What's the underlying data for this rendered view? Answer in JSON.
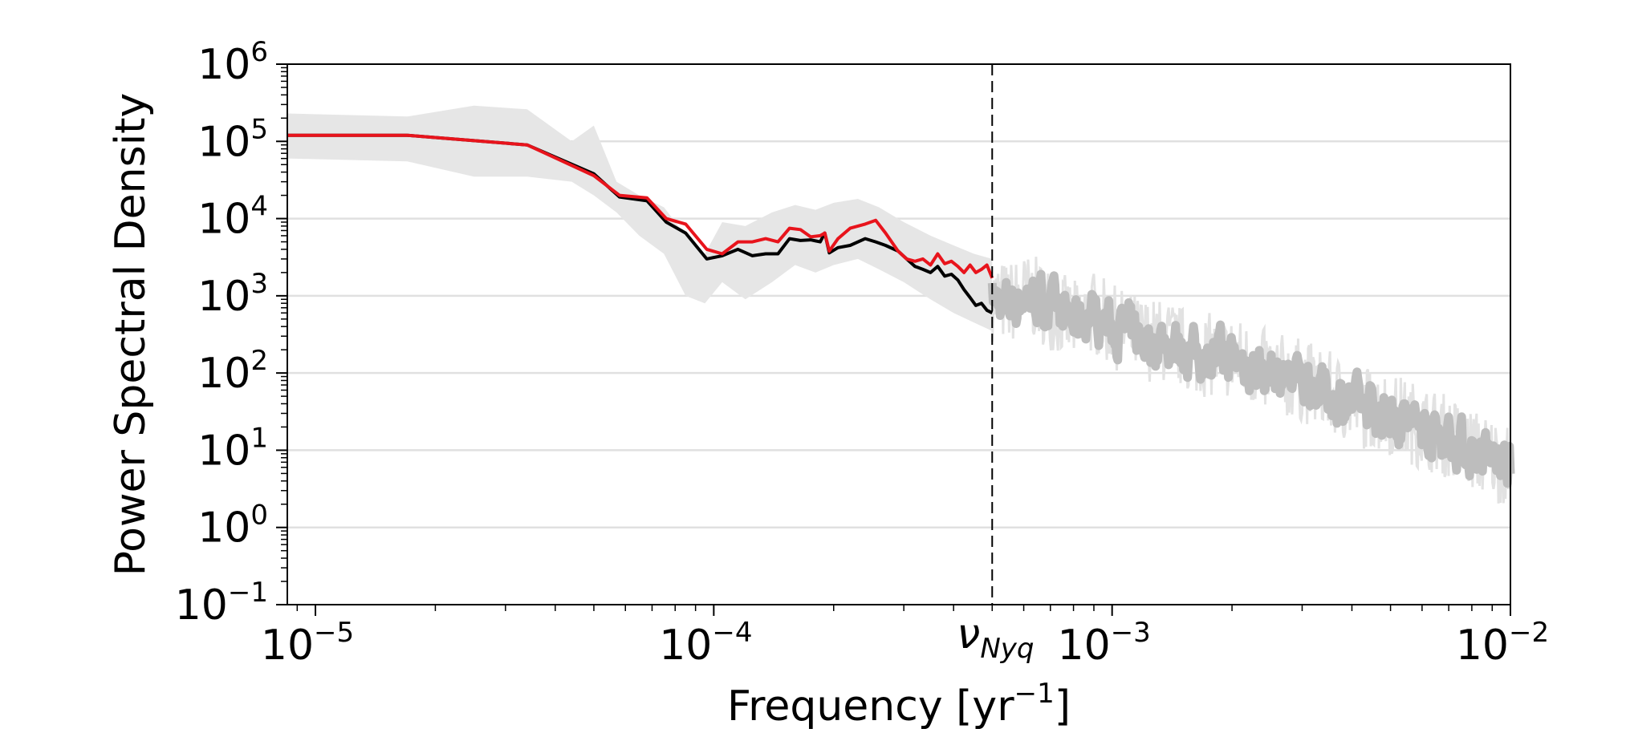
{
  "chart_data": {
    "type": "line",
    "xlabel": "Frequency [yr",
    "xlabel_exp": "−1",
    "xlabel_suffix": "]",
    "ylabel": "Power Spectral Density",
    "xscale": "log",
    "yscale": "log",
    "xlim": [
      8.5e-06,
      0.01
    ],
    "ylim": [
      0.1,
      1000000
    ],
    "grid": "horizontal",
    "x_ticks": [
      {
        "value": 1e-05,
        "base": "10",
        "exp": "−5"
      },
      {
        "value": 0.0001,
        "base": "10",
        "exp": "−4"
      },
      {
        "value": 0.001,
        "base": "10",
        "exp": "−3"
      },
      {
        "value": 0.01,
        "base": "10",
        "exp": "−2"
      }
    ],
    "y_ticks": [
      {
        "value": 0.1,
        "base": "10",
        "exp": "−1"
      },
      {
        "value": 1,
        "base": "10",
        "exp": "0"
      },
      {
        "value": 10,
        "base": "10",
        "exp": "1"
      },
      {
        "value": 100,
        "base": "10",
        "exp": "2"
      },
      {
        "value": 1000,
        "base": "10",
        "exp": "3"
      },
      {
        "value": 10000,
        "base": "10",
        "exp": "4"
      },
      {
        "value": 100000,
        "base": "10",
        "exp": "5"
      },
      {
        "value": 1000000,
        "base": "10",
        "exp": "6"
      }
    ],
    "annotation": {
      "x": 0.0005,
      "symbol": "ν",
      "subscript": "Nyq",
      "style": "dashed"
    },
    "colors": {
      "black_series": "#000000",
      "red_series": "#e8141c",
      "gray_series": "#bdbdbd",
      "band": "#e6e6e6",
      "grid": "#e0e0e0"
    },
    "band": {
      "x": [
        8.5e-06,
        1.7e-05,
        2.5e-05,
        3.4e-05,
        4.4e-05,
        5e-05,
        5.7e-05,
        6.5e-05,
        7.5e-05,
        8.5e-05,
        9.5e-05,
        0.000105,
        0.00012,
        0.00014,
        0.00016,
        0.00018,
        0.0002,
        0.00023,
        0.00026,
        0.0003,
        0.00035,
        0.0004,
        0.00045,
        0.0005
      ],
      "lower": [
        60000,
        55000,
        35000,
        35000,
        30000,
        20000,
        12000,
        6000,
        3500,
        1000,
        800,
        1500,
        900,
        1500,
        2500,
        2000,
        2500,
        3000,
        2200,
        1500,
        900,
        600,
        450,
        350
      ],
      "upper": [
        230000,
        210000,
        290000,
        260000,
        100000,
        160000,
        30000,
        20000,
        14000,
        6000,
        3500,
        9000,
        8000,
        12000,
        15000,
        13000,
        16000,
        18000,
        14000,
        9000,
        6000,
        4500,
        3500,
        3000
      ]
    },
    "series": [
      {
        "color_key": "black_series",
        "x": [
          8.5e-06,
          1.7e-05,
          3.4e-05,
          5e-05,
          5.8e-05,
          6.8e-05,
          7.6e-05,
          8.5e-05,
          9.6e-05,
          0.000105,
          0.000115,
          0.000125,
          0.000135,
          0.000145,
          0.000155,
          0.000165,
          0.000175,
          0.000185,
          0.00019,
          0.000195,
          0.000205,
          0.00022,
          0.00024,
          0.000255,
          0.00027,
          0.00029,
          0.000305,
          0.00032,
          0.000335,
          0.00035,
          0.000365,
          0.00038,
          0.000395,
          0.00041,
          0.000425,
          0.00044,
          0.000455,
          0.00047,
          0.000485,
          0.0005
        ],
        "y": [
          120000,
          120000,
          90000,
          38000,
          19000,
          17000,
          9000,
          6500,
          3000,
          3300,
          4000,
          3300,
          3500,
          3500,
          5500,
          5200,
          5300,
          5000,
          6500,
          3600,
          4200,
          4500,
          5500,
          5000,
          4500,
          3800,
          3000,
          2400,
          2200,
          2000,
          2400,
          1800,
          1900,
          1600,
          1200,
          950,
          750,
          800,
          650,
          600
        ]
      },
      {
        "color_key": "red_series",
        "x": [
          8.5e-06,
          1.7e-05,
          3.4e-05,
          5e-05,
          5.8e-05,
          6.8e-05,
          7.6e-05,
          8.5e-05,
          9.6e-05,
          0.000105,
          0.000115,
          0.000125,
          0.000135,
          0.000145,
          0.000155,
          0.000165,
          0.000175,
          0.000185,
          0.00019,
          0.000195,
          0.000205,
          0.00022,
          0.00024,
          0.000255,
          0.00027,
          0.00029,
          0.000305,
          0.00032,
          0.000335,
          0.00035,
          0.000365,
          0.00038,
          0.000395,
          0.00041,
          0.000425,
          0.00044,
          0.000455,
          0.00047,
          0.000485,
          0.0005
        ],
        "y": [
          120000,
          120000,
          90000,
          36000,
          20000,
          18500,
          10000,
          8500,
          4000,
          3500,
          5000,
          5000,
          5500,
          5000,
          7500,
          7200,
          5800,
          6000,
          6500,
          3800,
          5500,
          7500,
          8500,
          9500,
          6500,
          3800,
          3000,
          2800,
          3000,
          2500,
          3500,
          2600,
          2800,
          2400,
          2000,
          2500,
          2000,
          2200,
          2500,
          1700
        ]
      }
    ],
    "gray_series_anchors": {
      "x": [
        0.0005,
        0.00055,
        0.0006,
        0.00065,
        0.0007,
        0.0008,
        0.0009,
        0.001,
        0.0012,
        0.0014,
        0.0016,
        0.002,
        0.0025,
        0.003,
        0.004,
        0.005,
        0.006,
        0.007,
        0.008,
        0.009,
        0.01
      ],
      "y": [
        900,
        800,
        1000,
        900,
        700,
        450,
        600,
        400,
        280,
        250,
        180,
        160,
        100,
        80,
        40,
        30,
        20,
        15,
        10,
        8,
        6
      ]
    }
  }
}
